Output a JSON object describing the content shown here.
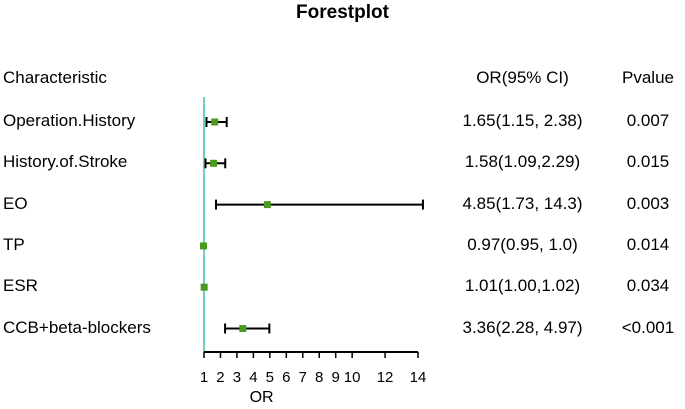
{
  "title": "Forestplot",
  "headers": {
    "characteristic": "Characteristic",
    "or": "OR(95% CI)",
    "pvalue": "Pvalue"
  },
  "colors": {
    "point": "#4a9a1f",
    "reference_line": "#6ccfbf",
    "ci_line": "#000000"
  },
  "chart_data": {
    "type": "forest",
    "title": "Forestplot",
    "xlabel": "OR",
    "reference": 1,
    "xlim": [
      1,
      14.5
    ],
    "xticks": [
      1,
      2,
      3,
      4,
      5,
      6,
      7,
      8,
      9,
      10,
      12,
      14
    ],
    "rows": [
      {
        "label": "Operation.History",
        "or": 1.65,
        "lower": 1.15,
        "upper": 2.38,
        "or_text": "1.65(1.15, 2.38)",
        "p_text": "0.007"
      },
      {
        "label": "History.of.Stroke",
        "or": 1.58,
        "lower": 1.09,
        "upper": 2.29,
        "or_text": "1.58(1.09,2.29)",
        "p_text": "0.015"
      },
      {
        "label": "EO",
        "or": 4.85,
        "lower": 1.73,
        "upper": 14.3,
        "or_text": "4.85(1.73, 14.3)",
        "p_text": "0.003"
      },
      {
        "label": "TP",
        "or": 0.97,
        "lower": 0.95,
        "upper": 1.0,
        "or_text": "0.97(0.95, 1.0)",
        "p_text": "0.014"
      },
      {
        "label": "ESR",
        "or": 1.01,
        "lower": 1.0,
        "upper": 1.02,
        "or_text": "1.01(1.00,1.02)",
        "p_text": "0.034"
      },
      {
        "label": "CCB+beta-blockers",
        "or": 3.36,
        "lower": 2.28,
        "upper": 4.97,
        "or_text": "3.36(2.28, 4.97)",
        "p_text": "<0.001"
      }
    ]
  }
}
